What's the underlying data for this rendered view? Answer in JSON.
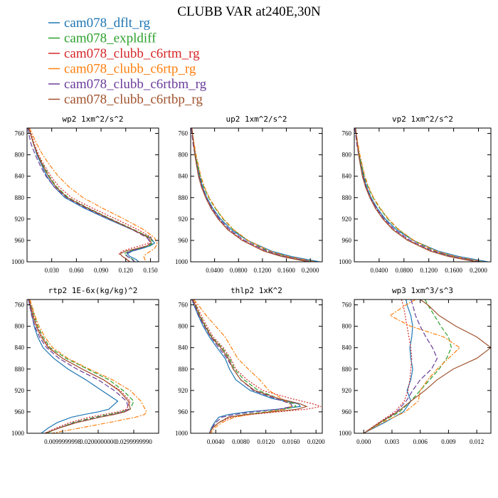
{
  "figure_title": "CLUBB VAR at240E,30N",
  "legend": [
    {
      "name": "cam078_dflt_rg",
      "color": "#1f77b4",
      "dash": ""
    },
    {
      "name": "cam078_expldiff",
      "color": "#2ca02c",
      "dash": "6 3"
    },
    {
      "name": "cam078_clubb_c6rtm_rg",
      "color": "#d62728",
      "dash": "2 2"
    },
    {
      "name": "cam078_clubb_c6rtp_rg",
      "color": "#ff7f0e",
      "dash": "6 2 2 2"
    },
    {
      "name": "cam078_clubb_c6rtbm_rg",
      "color": "#6a3d9a",
      "dash": "7 3"
    },
    {
      "name": "cam078_clubb_c6rtbp_rg",
      "color": "#a0522d",
      "dash": ""
    }
  ],
  "chart_data": [
    {
      "type": "line",
      "title": "wp2  1xm^2/s^2",
      "xlim": [
        0,
        0.16
      ],
      "xticks": [
        "0.030",
        "0.060",
        "0.090",
        "0.120",
        "0.150"
      ],
      "xtick_values": [
        0.03,
        0.06,
        0.09,
        0.12,
        0.15
      ],
      "ylim": [
        1000,
        750
      ],
      "yticks": [
        "760",
        "800",
        "840",
        "880",
        "920",
        "960",
        "1000"
      ],
      "y": [
        750,
        760,
        780,
        800,
        820,
        840,
        860,
        880,
        900,
        920,
        940,
        955,
        965,
        970,
        975,
        980,
        985,
        990,
        995,
        1000
      ],
      "series": [
        {
          "values": [
            0.002,
            0.004,
            0.008,
            0.012,
            0.018,
            0.024,
            0.033,
            0.046,
            0.07,
            0.098,
            0.128,
            0.15,
            0.155,
            0.15,
            0.14,
            0.128,
            0.122,
            0.125,
            0.132,
            0.136
          ]
        },
        {
          "values": [
            0.002,
            0.004,
            0.008,
            0.013,
            0.02,
            0.027,
            0.036,
            0.05,
            0.075,
            0.102,
            0.13,
            0.15,
            0.153,
            0.148,
            0.137,
            0.124,
            0.118,
            0.122,
            0.128,
            0.132
          ]
        },
        {
          "values": [
            0.003,
            0.005,
            0.009,
            0.014,
            0.021,
            0.029,
            0.039,
            0.054,
            0.08,
            0.108,
            0.135,
            0.152,
            0.148,
            0.138,
            0.126,
            0.116,
            0.112,
            0.116,
            0.12,
            0.125
          ]
        },
        {
          "values": [
            0.003,
            0.006,
            0.012,
            0.019,
            0.028,
            0.038,
            0.051,
            0.068,
            0.092,
            0.118,
            0.142,
            0.155,
            0.158,
            0.157,
            0.155,
            0.15,
            0.145,
            0.142,
            0.143,
            0.145
          ]
        },
        {
          "values": [
            0.001,
            0.002,
            0.005,
            0.01,
            0.016,
            0.023,
            0.033,
            0.048,
            0.072,
            0.1,
            0.128,
            0.146,
            0.15,
            0.146,
            0.137,
            0.126,
            0.12,
            0.122,
            0.127,
            0.131
          ]
        },
        {
          "values": [
            0.002,
            0.004,
            0.008,
            0.013,
            0.019,
            0.026,
            0.035,
            0.049,
            0.074,
            0.101,
            0.129,
            0.148,
            0.151,
            0.146,
            0.134,
            0.12,
            0.113,
            0.116,
            0.121,
            0.125
          ]
        }
      ]
    },
    {
      "type": "line",
      "title": "up2  1xm^2/s^2",
      "xlim": [
        0,
        0.22
      ],
      "xticks": [
        "0.0400",
        "0.0800",
        "0.1200",
        "0.1600",
        "0.2000"
      ],
      "xtick_values": [
        0.04,
        0.08,
        0.12,
        0.16,
        0.2
      ],
      "ylim": [
        1000,
        750
      ],
      "yticks": [
        "760",
        "800",
        "840",
        "880",
        "920",
        "960",
        "1000"
      ],
      "y": [
        750,
        760,
        780,
        800,
        820,
        840,
        860,
        880,
        900,
        920,
        940,
        960,
        980,
        990,
        1000
      ],
      "series": [
        {
          "values": [
            0.002,
            0.003,
            0.005,
            0.008,
            0.011,
            0.015,
            0.02,
            0.027,
            0.037,
            0.05,
            0.068,
            0.095,
            0.135,
            0.168,
            0.215
          ]
        },
        {
          "values": [
            0.002,
            0.003,
            0.005,
            0.008,
            0.012,
            0.016,
            0.022,
            0.03,
            0.041,
            0.054,
            0.071,
            0.095,
            0.13,
            0.16,
            0.205
          ]
        },
        {
          "values": [
            0.002,
            0.003,
            0.005,
            0.007,
            0.01,
            0.014,
            0.019,
            0.026,
            0.035,
            0.047,
            0.063,
            0.088,
            0.125,
            0.155,
            0.2
          ]
        },
        {
          "values": [
            0.002,
            0.003,
            0.006,
            0.009,
            0.013,
            0.017,
            0.023,
            0.031,
            0.042,
            0.055,
            0.072,
            0.096,
            0.132,
            0.162,
            0.208
          ]
        },
        {
          "values": [
            0.001,
            0.002,
            0.004,
            0.007,
            0.01,
            0.014,
            0.019,
            0.026,
            0.036,
            0.048,
            0.065,
            0.09,
            0.127,
            0.157,
            0.202
          ]
        },
        {
          "values": [
            0.002,
            0.003,
            0.005,
            0.007,
            0.01,
            0.013,
            0.018,
            0.025,
            0.034,
            0.046,
            0.062,
            0.086,
            0.122,
            0.152,
            0.196
          ]
        }
      ]
    },
    {
      "type": "line",
      "title": "vp2  1xm^2/s^2",
      "xlim": [
        0,
        0.22
      ],
      "xticks": [
        "0.0400",
        "0.0800",
        "0.1200",
        "0.1600",
        "0.2000"
      ],
      "xtick_values": [
        0.04,
        0.08,
        0.12,
        0.16,
        0.2
      ],
      "ylim": [
        1000,
        750
      ],
      "yticks": [
        "760",
        "800",
        "840",
        "880",
        "920",
        "960",
        "1000"
      ],
      "y": [
        750,
        760,
        780,
        800,
        820,
        840,
        860,
        880,
        900,
        920,
        940,
        960,
        980,
        990,
        1000
      ],
      "series": [
        {
          "values": [
            0.002,
            0.003,
            0.005,
            0.008,
            0.011,
            0.015,
            0.02,
            0.027,
            0.037,
            0.05,
            0.068,
            0.095,
            0.135,
            0.168,
            0.215
          ]
        },
        {
          "values": [
            0.002,
            0.003,
            0.005,
            0.008,
            0.012,
            0.016,
            0.022,
            0.03,
            0.041,
            0.054,
            0.071,
            0.095,
            0.13,
            0.16,
            0.205
          ]
        },
        {
          "values": [
            0.002,
            0.003,
            0.005,
            0.007,
            0.01,
            0.014,
            0.019,
            0.026,
            0.035,
            0.047,
            0.063,
            0.088,
            0.125,
            0.155,
            0.2
          ]
        },
        {
          "values": [
            0.002,
            0.003,
            0.006,
            0.009,
            0.013,
            0.017,
            0.023,
            0.031,
            0.042,
            0.055,
            0.072,
            0.096,
            0.132,
            0.162,
            0.208
          ]
        },
        {
          "values": [
            0.001,
            0.002,
            0.004,
            0.007,
            0.01,
            0.014,
            0.019,
            0.026,
            0.036,
            0.048,
            0.065,
            0.09,
            0.127,
            0.157,
            0.202
          ]
        },
        {
          "values": [
            0.002,
            0.003,
            0.005,
            0.007,
            0.01,
            0.013,
            0.018,
            0.025,
            0.034,
            0.046,
            0.062,
            0.086,
            0.122,
            0.152,
            0.196
          ]
        }
      ]
    },
    {
      "type": "line",
      "title": "rtp2  1E-6x(kg/kg)^2",
      "xlim": [
        0,
        0.037
      ],
      "xticks": [
        "0.0099999998",
        "0.0200000000",
        "0.0299999990"
      ],
      "xtick_values": [
        0.01,
        0.02,
        0.03
      ],
      "ylim": [
        1000,
        750
      ],
      "yticks": [
        "760",
        "800",
        "840",
        "880",
        "920",
        "960",
        "1000"
      ],
      "y": [
        750,
        760,
        780,
        800,
        820,
        840,
        860,
        880,
        900,
        920,
        940,
        955,
        960,
        965,
        970,
        980,
        990,
        1000
      ],
      "series": [
        {
          "values": [
            0.0005,
            0.0008,
            0.0014,
            0.002,
            0.003,
            0.0045,
            0.0075,
            0.0115,
            0.0165,
            0.021,
            0.0255,
            0.023,
            0.02,
            0.016,
            0.0125,
            0.0085,
            0.006,
            0.004
          ]
        },
        {
          "values": [
            0.0008,
            0.0012,
            0.002,
            0.003,
            0.0045,
            0.0065,
            0.011,
            0.017,
            0.023,
            0.027,
            0.03,
            0.029,
            0.0265,
            0.023,
            0.019,
            0.013,
            0.009,
            0.0055
          ]
        },
        {
          "values": [
            0.0006,
            0.001,
            0.0018,
            0.0028,
            0.0042,
            0.0062,
            0.01,
            0.0155,
            0.0215,
            0.0262,
            0.029,
            0.028,
            0.0255,
            0.0215,
            0.0175,
            0.012,
            0.0082,
            0.005
          ]
        },
        {
          "values": [
            0.0008,
            0.0013,
            0.0022,
            0.0034,
            0.005,
            0.0072,
            0.0115,
            0.0175,
            0.024,
            0.029,
            0.032,
            0.0332,
            0.0336,
            0.033,
            0.0305,
            0.023,
            0.015,
            0.007
          ]
        },
        {
          "values": [
            0.0004,
            0.0007,
            0.0013,
            0.0022,
            0.0035,
            0.0055,
            0.009,
            0.014,
            0.02,
            0.0245,
            0.028,
            0.0285,
            0.027,
            0.024,
            0.02,
            0.0135,
            0.009,
            0.005
          ]
        },
        {
          "values": [
            0.0006,
            0.0009,
            0.0016,
            0.0026,
            0.004,
            0.006,
            0.01,
            0.0155,
            0.0215,
            0.0258,
            0.0285,
            0.029,
            0.0275,
            0.0245,
            0.0205,
            0.014,
            0.0092,
            0.005
          ]
        }
      ]
    },
    {
      "type": "line",
      "title": "thlp2  1xK^2",
      "xlim": [
        0,
        0.021
      ],
      "xticks": [
        "0.0040",
        "0.0080",
        "0.0120",
        "0.0160",
        "0.0200"
      ],
      "xtick_values": [
        0.004,
        0.008,
        0.012,
        0.016,
        0.02
      ],
      "ylim": [
        1000,
        750
      ],
      "yticks": [
        "760",
        "800",
        "840",
        "880",
        "920",
        "960",
        "1000"
      ],
      "y": [
        750,
        760,
        780,
        800,
        820,
        840,
        860,
        880,
        900,
        920,
        935,
        945,
        950,
        955,
        960,
        965,
        970,
        980,
        990,
        1000
      ],
      "series": [
        {
          "values": [
            0.0002,
            0.0005,
            0.0012,
            0.002,
            0.003,
            0.0042,
            0.0055,
            0.0062,
            0.0072,
            0.0095,
            0.013,
            0.0172,
            0.0175,
            0.014,
            0.009,
            0.006,
            0.0045,
            0.0038,
            0.0033,
            0.003
          ]
        },
        {
          "values": [
            0.0003,
            0.0008,
            0.0015,
            0.0024,
            0.0034,
            0.005,
            0.0062,
            0.007,
            0.0085,
            0.0108,
            0.014,
            0.0165,
            0.0168,
            0.015,
            0.012,
            0.0085,
            0.006,
            0.0045,
            0.0035,
            0.003
          ]
        },
        {
          "values": [
            0.0004,
            0.0009,
            0.0017,
            0.0026,
            0.0036,
            0.0052,
            0.0064,
            0.0072,
            0.009,
            0.0115,
            0.016,
            0.0195,
            0.0208,
            0.0185,
            0.014,
            0.0095,
            0.0065,
            0.0045,
            0.0035,
            0.003
          ]
        },
        {
          "values": [
            0.0005,
            0.0012,
            0.0025,
            0.004,
            0.0055,
            0.0065,
            0.0075,
            0.0092,
            0.011,
            0.0125,
            0.0145,
            0.0158,
            0.016,
            0.015,
            0.0125,
            0.0095,
            0.007,
            0.005,
            0.0038,
            0.0032
          ]
        },
        {
          "values": [
            0.0002,
            0.0006,
            0.0013,
            0.0022,
            0.0032,
            0.0045,
            0.0058,
            0.0068,
            0.008,
            0.01,
            0.0135,
            0.016,
            0.0162,
            0.014,
            0.01,
            0.007,
            0.005,
            0.004,
            0.0034,
            0.003
          ]
        },
        {
          "values": [
            0.0003,
            0.0007,
            0.0014,
            0.0023,
            0.0033,
            0.0048,
            0.006,
            0.0068,
            0.008,
            0.0102,
            0.014,
            0.0175,
            0.0185,
            0.017,
            0.013,
            0.0088,
            0.006,
            0.0045,
            0.0035,
            0.003
          ]
        }
      ]
    },
    {
      "type": "line",
      "title": "wp3  1xm^3/s^3",
      "xlim": [
        -0.001,
        0.0135
      ],
      "xticks": [
        "0.000",
        "0.003",
        "0.006",
        "0.009",
        "0.012"
      ],
      "xtick_values": [
        0.0,
        0.003,
        0.006,
        0.009,
        0.012
      ],
      "ylim": [
        1000,
        750
      ],
      "yticks": [
        "760",
        "800",
        "840",
        "880",
        "920",
        "960",
        "1000"
      ],
      "y": [
        750,
        760,
        780,
        800,
        820,
        840,
        860,
        880,
        900,
        920,
        940,
        960,
        980,
        1000
      ],
      "series": [
        {
          "values": [
            0.0045,
            0.0046,
            0.005,
            0.0052,
            0.0051,
            0.0049,
            0.005,
            0.0052,
            0.005,
            0.0046,
            0.005,
            0.0042,
            0.0022,
            0.0
          ]
        },
        {
          "values": [
            0.0065,
            0.0068,
            0.0075,
            0.0082,
            0.009,
            0.0093,
            0.0088,
            0.008,
            0.007,
            0.006,
            0.005,
            0.0038,
            0.0018,
            0.0
          ]
        },
        {
          "values": [
            0.004,
            0.0042,
            0.0044,
            0.0046,
            0.0048,
            0.005,
            0.0051,
            0.005,
            0.0049,
            0.0047,
            0.0043,
            0.0033,
            0.0016,
            0.0
          ]
        },
        {
          "values": [
            0.0055,
            0.0045,
            0.0028,
            0.005,
            0.0085,
            0.0102,
            0.009,
            0.0078,
            0.0068,
            0.006,
            0.0058,
            0.0044,
            0.002,
            0.0
          ]
        },
        {
          "values": [
            0.005,
            0.0052,
            0.0055,
            0.006,
            0.0066,
            0.0073,
            0.0078,
            0.0072,
            0.006,
            0.0052,
            0.0045,
            0.0035,
            0.0017,
            0.0
          ]
        },
        {
          "values": [
            0.006,
            0.0068,
            0.008,
            0.0098,
            0.012,
            0.0135,
            0.012,
            0.0095,
            0.0078,
            0.0065,
            0.005,
            0.0036,
            0.0017,
            0.0
          ]
        }
      ]
    }
  ]
}
